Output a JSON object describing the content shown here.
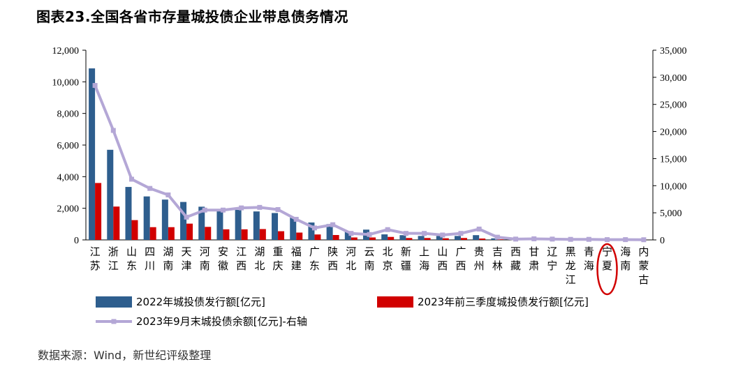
{
  "figure": {
    "title": "图表23.全国各省市存量城投债企业带息债务情况",
    "source": "数据来源：Wind，新世纪评级整理"
  },
  "chart_data": {
    "type": "bar",
    "categories": [
      "江苏",
      "浙江",
      "山东",
      "四川",
      "湖南",
      "天津",
      "河南",
      "安徽",
      "江西",
      "湖北",
      "重庆",
      "福建",
      "广东",
      "陕西",
      "河北",
      "云南",
      "北京",
      "新疆",
      "上海",
      "山西",
      "广西",
      "贵州",
      "吉林",
      "西藏",
      "甘肃",
      "辽宁",
      "黑龙江",
      "青海",
      "宁夏",
      "海南",
      "内蒙古"
    ],
    "series": [
      {
        "name": "2022年城投债发行额[亿元]",
        "type": "bar",
        "axis": "left",
        "color": "#2E5E8E",
        "values": [
          10850,
          5700,
          3350,
          2750,
          2550,
          2400,
          2100,
          1950,
          1900,
          1800,
          1700,
          1400,
          1100,
          1000,
          550,
          650,
          350,
          300,
          250,
          250,
          250,
          300,
          100,
          30,
          50,
          20,
          10,
          10,
          5,
          10,
          5
        ]
      },
      {
        "name": "2023年前三季度城投债发行额[亿元]",
        "type": "bar",
        "axis": "right",
        "color": "#D10000",
        "values": [
          10500,
          6150,
          3650,
          2350,
          2350,
          3000,
          2400,
          1950,
          1950,
          2000,
          1600,
          1350,
          1000,
          900,
          450,
          450,
          550,
          350,
          350,
          300,
          350,
          250,
          100,
          20,
          30,
          20,
          10,
          10,
          5,
          5,
          5
        ]
      },
      {
        "name": "2023年9月末城投债余额[亿元]-右轴",
        "type": "line",
        "axis": "right",
        "color": "#B4A7D6",
        "values": [
          28500,
          20200,
          11200,
          9500,
          8300,
          4200,
          5500,
          5500,
          5900,
          6000,
          5600,
          3800,
          2200,
          2800,
          1200,
          1000,
          1900,
          1200,
          1200,
          900,
          1200,
          2000,
          500,
          150,
          200,
          150,
          100,
          100,
          50,
          50,
          30
        ]
      }
    ],
    "y_left": {
      "min": 0,
      "max": 12000,
      "ticks": [
        "0",
        "2,000",
        "4,000",
        "6,000",
        "8,000",
        "10,000",
        "12,000"
      ]
    },
    "y_right": {
      "min": 0,
      "max": 35000,
      "ticks": [
        "0",
        "5,000",
        "10,000",
        "15,000",
        "20,000",
        "25,000",
        "30,000",
        "35,000"
      ]
    },
    "highlight": {
      "category": "宁夏",
      "marker": "red-ellipse"
    },
    "legend_placement": "bottom"
  }
}
